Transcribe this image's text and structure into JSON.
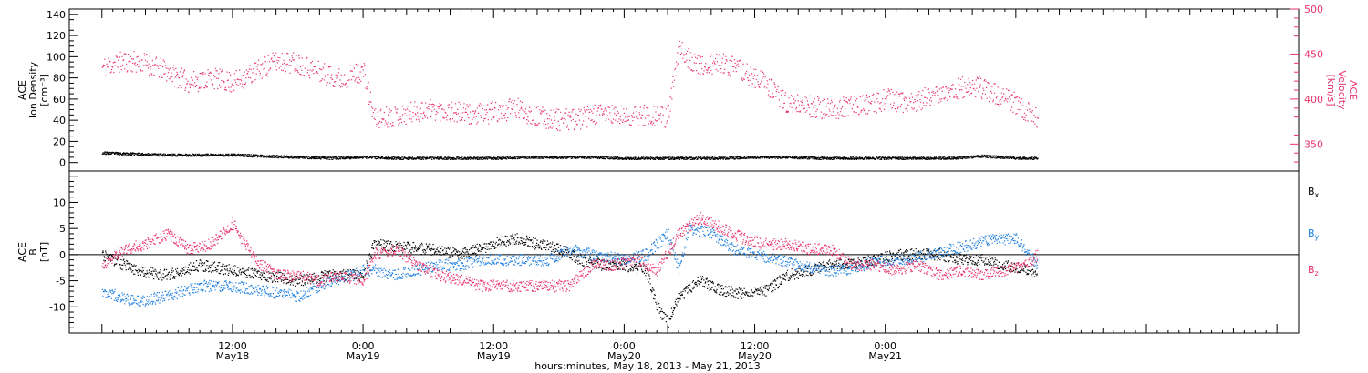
{
  "chart_data": [
    {
      "type": "scatter",
      "panel": "top",
      "ylabel_left": [
        "ACE",
        "Ion Density",
        "[cm⁻³]"
      ],
      "ylabel_right": [
        "ACE",
        "Velocity",
        "[km/s]"
      ],
      "left_axis": {
        "ylim": [
          -8,
          145
        ],
        "ticks": [
          0,
          20,
          40,
          60,
          80,
          100,
          120,
          140
        ]
      },
      "right_axis": {
        "ylim": [
          320,
          500
        ],
        "ticks": [
          350,
          400,
          450,
          500
        ]
      },
      "series": [
        {
          "axis": "left",
          "color": "#000000",
          "points": [
            [
              0,
              9
            ],
            [
              3,
              8
            ],
            [
              6,
              7
            ],
            [
              9,
              7
            ],
            [
              12,
              7
            ],
            [
              15,
              6
            ],
            [
              18,
              5
            ],
            [
              21,
              4
            ],
            [
              24,
              5
            ],
            [
              27,
              4
            ],
            [
              30,
              4
            ],
            [
              33,
              4
            ],
            [
              36,
              4
            ],
            [
              39,
              5
            ],
            [
              42,
              5
            ],
            [
              45,
              5
            ],
            [
              48,
              4
            ],
            [
              51,
              4
            ],
            [
              54,
              4
            ],
            [
              57,
              4
            ],
            [
              60,
              5
            ],
            [
              63,
              5
            ],
            [
              66,
              4
            ],
            [
              69,
              4
            ],
            [
              72,
              4
            ],
            [
              75,
              4
            ],
            [
              78,
              4
            ],
            [
              81,
              6
            ],
            [
              84,
              4
            ],
            [
              86,
              4
            ]
          ]
        },
        {
          "axis": "right",
          "color": "#E8336A",
          "points": [
            [
              0,
              435
            ],
            [
              2,
              442
            ],
            [
              4,
              440
            ],
            [
              6,
              430
            ],
            [
              8,
              418
            ],
            [
              10,
              424
            ],
            [
              12,
              418
            ],
            [
              14,
              430
            ],
            [
              16,
              442
            ],
            [
              18,
              440
            ],
            [
              20,
              430
            ],
            [
              22,
              422
            ],
            [
              24,
              432
            ],
            [
              25,
              378
            ],
            [
              28,
              384
            ],
            [
              30,
              389
            ],
            [
              32,
              386
            ],
            [
              34,
              382
            ],
            [
              36,
              385
            ],
            [
              38,
              390
            ],
            [
              40,
              380
            ],
            [
              42,
              377
            ],
            [
              44,
              378
            ],
            [
              46,
              384
            ],
            [
              48,
              380
            ],
            [
              50,
              383
            ],
            [
              52,
              380
            ],
            [
              53,
              455
            ],
            [
              55,
              435
            ],
            [
              57,
              440
            ],
            [
              59,
              430
            ],
            [
              61,
              417
            ],
            [
              63,
              395
            ],
            [
              65,
              392
            ],
            [
              67,
              388
            ],
            [
              69,
              392
            ],
            [
              71,
              394
            ],
            [
              72,
              400
            ],
            [
              74,
              395
            ],
            [
              76,
              402
            ],
            [
              78,
              410
            ],
            [
              80,
              415
            ],
            [
              82,
              406
            ],
            [
              84,
              395
            ],
            [
              86,
              378
            ]
          ]
        }
      ]
    },
    {
      "type": "scatter",
      "panel": "bottom",
      "ylabel": [
        "ACE",
        "B",
        "[nT]"
      ],
      "ylim": [
        -15,
        16
      ],
      "ticks": [
        -10,
        -5,
        0,
        5,
        10
      ],
      "legend": [
        "B",
        "B",
        "B"
      ],
      "legend_sub": [
        "x",
        "y",
        "z"
      ],
      "series": [
        {
          "name_sub": "x",
          "color": "#000000",
          "points": [
            [
              0,
              0
            ],
            [
              3,
              -3
            ],
            [
              6,
              -4
            ],
            [
              9,
              -2
            ],
            [
              12,
              -3
            ],
            [
              15,
              -4
            ],
            [
              18,
              -5
            ],
            [
              21,
              -4
            ],
            [
              24,
              -4
            ],
            [
              25,
              2
            ],
            [
              27,
              1.5
            ],
            [
              30,
              1
            ],
            [
              33,
              0
            ],
            [
              36,
              2
            ],
            [
              38,
              3
            ],
            [
              40,
              2
            ],
            [
              42,
              1
            ],
            [
              44,
              -1
            ],
            [
              46,
              -2
            ],
            [
              48,
              -2
            ],
            [
              50,
              -3
            ],
            [
              51,
              -10
            ],
            [
              52,
              -13
            ],
            [
              53,
              -8
            ],
            [
              55,
              -5
            ],
            [
              57,
              -7
            ],
            [
              59,
              -7.5
            ],
            [
              61,
              -7
            ],
            [
              63,
              -4
            ],
            [
              65,
              -3
            ],
            [
              67,
              -2
            ],
            [
              69,
              -2
            ],
            [
              71,
              -1
            ],
            [
              73,
              0
            ],
            [
              75,
              0
            ],
            [
              77,
              0
            ],
            [
              79,
              -1
            ],
            [
              81,
              -1
            ],
            [
              83,
              -2
            ],
            [
              86,
              -3.5
            ]
          ]
        },
        {
          "name_sub": "y",
          "color": "#1E7FE0",
          "points": [
            [
              0,
              -7
            ],
            [
              3,
              -9
            ],
            [
              6,
              -8
            ],
            [
              9,
              -6
            ],
            [
              12,
              -6
            ],
            [
              15,
              -7
            ],
            [
              18,
              -8
            ],
            [
              21,
              -5
            ],
            [
              23,
              -4
            ],
            [
              24,
              -3
            ],
            [
              25,
              -3
            ],
            [
              27,
              -4
            ],
            [
              29,
              -3
            ],
            [
              31,
              -2
            ],
            [
              33,
              -2
            ],
            [
              35,
              -1
            ],
            [
              37,
              -1
            ],
            [
              39,
              -1
            ],
            [
              41,
              -1
            ],
            [
              43,
              1
            ],
            [
              45,
              0
            ],
            [
              48,
              -1
            ],
            [
              50,
              0
            ],
            [
              52,
              4
            ],
            [
              53,
              -3
            ],
            [
              54,
              5
            ],
            [
              56,
              4
            ],
            [
              58,
              1
            ],
            [
              60,
              0
            ],
            [
              62,
              -1
            ],
            [
              64,
              -2
            ],
            [
              66,
              -3
            ],
            [
              68,
              -3
            ],
            [
              70,
              -2
            ],
            [
              72,
              -1
            ],
            [
              74,
              -1
            ],
            [
              76,
              0
            ],
            [
              78,
              1
            ],
            [
              80,
              2
            ],
            [
              82,
              3
            ],
            [
              84,
              3
            ],
            [
              86,
              -2
            ]
          ]
        },
        {
          "name_sub": "z",
          "color": "#E8336A",
          "points": [
            [
              0,
              -2
            ],
            [
              2,
              1
            ],
            [
              4,
              2
            ],
            [
              6,
              4
            ],
            [
              8,
              1
            ],
            [
              10,
              2
            ],
            [
              12,
              6
            ],
            [
              14,
              -1
            ],
            [
              16,
              -4
            ],
            [
              18,
              -4
            ],
            [
              20,
              -5
            ],
            [
              22,
              -4
            ],
            [
              24,
              -5
            ],
            [
              25,
              0
            ],
            [
              27,
              1
            ],
            [
              29,
              -2
            ],
            [
              31,
              -4
            ],
            [
              33,
              -5
            ],
            [
              35,
              -6
            ],
            [
              37,
              -6
            ],
            [
              39,
              -6
            ],
            [
              41,
              -6
            ],
            [
              43,
              -6
            ],
            [
              45,
              -2
            ],
            [
              47,
              -2
            ],
            [
              49,
              -1
            ],
            [
              51,
              -3
            ],
            [
              53,
              4
            ],
            [
              55,
              7
            ],
            [
              57,
              5
            ],
            [
              59,
              3
            ],
            [
              61,
              2
            ],
            [
              63,
              2
            ],
            [
              65,
              1
            ],
            [
              67,
              1
            ],
            [
              69,
              -2
            ],
            [
              71,
              -2
            ],
            [
              73,
              -3
            ],
            [
              75,
              -2
            ],
            [
              77,
              -4
            ],
            [
              79,
              -3
            ],
            [
              81,
              -4
            ],
            [
              83,
              -3
            ],
            [
              85,
              -2
            ],
            [
              86,
              0
            ]
          ]
        }
      ]
    }
  ],
  "x_axis": {
    "xlim": [
      -3,
      110
    ],
    "ticks": [
      {
        "x": 12,
        "time": "12:00",
        "date": "May18"
      },
      {
        "x": 24,
        "time": "0:00",
        "date": "May19"
      },
      {
        "x": 36,
        "time": "12:00",
        "date": "May19"
      },
      {
        "x": 48,
        "time": "0:00",
        "date": "May20"
      },
      {
        "x": 60,
        "time": "12:00",
        "date": "May20"
      },
      {
        "x": 72,
        "time": "0:00",
        "date": "May21"
      }
    ],
    "title": "hours:minutes, May 18, 2013 - May 21, 2013"
  }
}
